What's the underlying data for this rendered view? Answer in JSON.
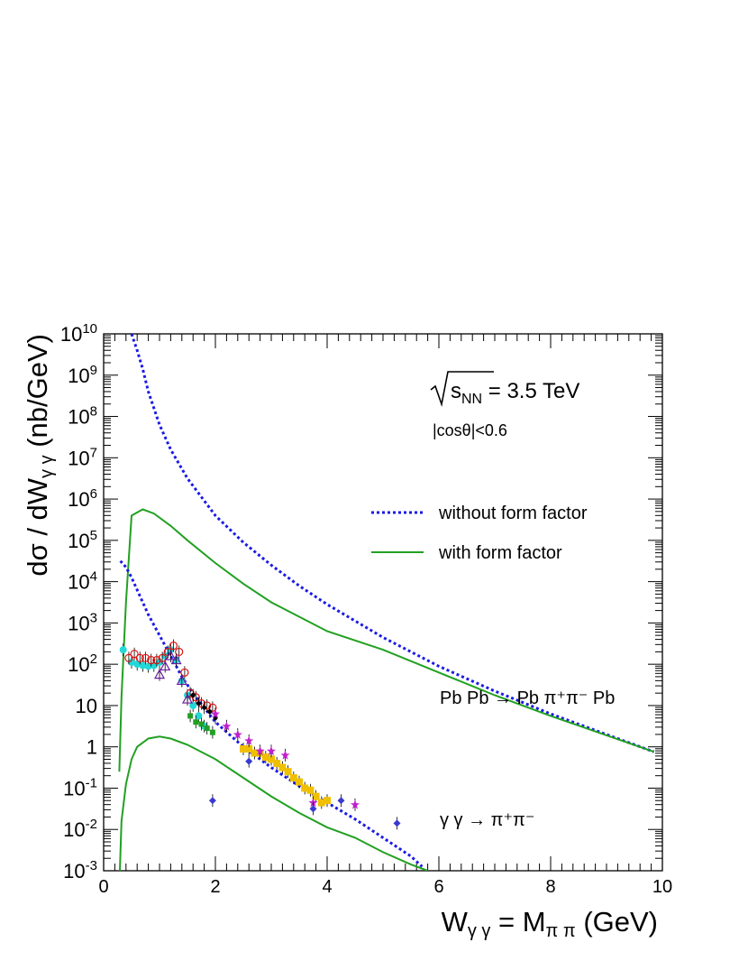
{
  "chart_data": {
    "type": "line",
    "xlabel": {
      "main": "W",
      "main_sub": "γ γ",
      "eq": " = M",
      "eq_sub": "π π",
      "unit": " (GeV)"
    },
    "ylabel": {
      "main": "dσ / dW",
      "sub": "γ γ",
      "unit": " (nb/GeV)"
    },
    "xlim": [
      0,
      10
    ],
    "ylim_log10": [
      -3,
      10
    ],
    "y_scale": "log",
    "x_ticks": [
      "0",
      "2",
      "4",
      "6",
      "8",
      "10"
    ],
    "y_ticks": [
      {
        "base": "10",
        "exp": "-3"
      },
      {
        "base": "10",
        "exp": "-2"
      },
      {
        "base": "10",
        "exp": "-1"
      },
      {
        "base": "1",
        "exp": ""
      },
      {
        "base": "10",
        "exp": ""
      },
      {
        "base": "10",
        "exp": "2"
      },
      {
        "base": "10",
        "exp": "3"
      },
      {
        "base": "10",
        "exp": "4"
      },
      {
        "base": "10",
        "exp": "5"
      },
      {
        "base": "10",
        "exp": "6"
      },
      {
        "base": "10",
        "exp": "7"
      },
      {
        "base": "10",
        "exp": "8"
      },
      {
        "base": "10",
        "exp": "9"
      },
      {
        "base": "10",
        "exp": "10"
      }
    ],
    "energy_label": {
      "prefix": "s",
      "sub": "NN",
      "value": " = 3.5 TeV"
    },
    "cut_label": "|cosθ|<0.6",
    "legend": [
      {
        "label": "without form factor",
        "color": "#1a1ae6",
        "style": "dotted"
      },
      {
        "label": "with form factor",
        "color": "#22a022",
        "style": "solid"
      }
    ],
    "annotations": [
      {
        "text": "Pb Pb → Pb π⁺π⁻ Pb"
      },
      {
        "text": "γ γ → π⁺π⁻"
      }
    ],
    "series": [
      {
        "curve": "PbPb-no-ff",
        "color": "#1a1ae6",
        "style": "dotted",
        "x": [
          0.5,
          0.6,
          0.7,
          0.8,
          1.0,
          1.2,
          1.5,
          2.0,
          2.5,
          3.0,
          3.5,
          4.0,
          5.0,
          6.0,
          7.0,
          8.0,
          9.0,
          9.85
        ],
        "log10y": [
          10.0,
          9.6,
          9.15,
          8.6,
          7.8,
          7.2,
          6.5,
          5.6,
          4.95,
          4.4,
          3.9,
          3.45,
          2.65,
          1.95,
          1.35,
          0.8,
          0.3,
          -0.12
        ]
      },
      {
        "curve": "PbPb-with-ff",
        "color": "#22a022",
        "style": "solid",
        "x": [
          0.28,
          0.32,
          0.4,
          0.5,
          0.7,
          0.9,
          1.2,
          1.5,
          2.0,
          2.5,
          3.0,
          3.5,
          4.0,
          5.0,
          6.0,
          7.0,
          8.0,
          9.0,
          9.85
        ],
        "log10y": [
          -0.6,
          1.2,
          3.5,
          5.6,
          5.75,
          5.65,
          5.35,
          5.0,
          4.45,
          3.95,
          3.5,
          3.15,
          2.8,
          2.35,
          1.8,
          1.25,
          0.75,
          0.28,
          -0.12
        ]
      },
      {
        "curve": "gg-no-ff",
        "color": "#1a1ae6",
        "style": "dotted",
        "x": [
          0.3,
          0.4,
          0.5,
          0.6,
          0.7,
          0.8,
          1.0,
          1.2,
          1.4,
          1.6,
          2.0,
          2.5,
          3.0,
          3.5,
          4.0,
          4.5,
          5.0,
          5.5,
          5.7
        ],
        "log10y": [
          4.5,
          4.35,
          4.1,
          3.8,
          3.5,
          3.2,
          2.7,
          2.2,
          1.7,
          1.3,
          0.6,
          0.0,
          -0.5,
          -0.95,
          -1.35,
          -1.75,
          -2.2,
          -2.65,
          -2.9
        ]
      },
      {
        "curve": "gg-with-ff",
        "color": "#22a022",
        "style": "solid",
        "x": [
          0.29,
          0.32,
          0.4,
          0.5,
          0.6,
          0.8,
          1.0,
          1.2,
          1.5,
          2.0,
          2.5,
          3.0,
          3.5,
          4.0,
          4.5,
          5.0,
          5.5,
          5.8
        ],
        "log10y": [
          -3.0,
          -1.8,
          -0.9,
          -0.3,
          0.0,
          0.2,
          0.25,
          0.2,
          0.05,
          -0.3,
          -0.75,
          -1.2,
          -1.6,
          -1.95,
          -2.2,
          -2.55,
          -2.85,
          -3.0
        ]
      }
    ],
    "data_points": [
      {
        "set": "cyan-circles",
        "color": "#22d8d8",
        "marker": "filled-circle",
        "points": [
          [
            0.35,
            2.35
          ],
          [
            0.5,
            2.05
          ],
          [
            0.6,
            2.0
          ],
          [
            0.7,
            1.97
          ],
          [
            0.8,
            1.95
          ],
          [
            0.9,
            1.97
          ],
          [
            1.0,
            2.05
          ],
          [
            1.1,
            2.2
          ],
          [
            1.2,
            2.35
          ],
          [
            1.3,
            2.1
          ],
          [
            1.4,
            1.6
          ],
          [
            1.5,
            1.25
          ],
          [
            1.6,
            1.0
          ],
          [
            1.7,
            0.75
          ],
          [
            1.8,
            0.5
          ]
        ]
      },
      {
        "set": "red-circles",
        "color": "#e01010",
        "marker": "open-circle",
        "points": [
          [
            0.45,
            2.15
          ],
          [
            0.55,
            2.25
          ],
          [
            0.65,
            2.15
          ],
          [
            0.75,
            2.15
          ],
          [
            0.85,
            2.1
          ],
          [
            0.95,
            2.1
          ],
          [
            1.05,
            2.15
          ],
          [
            1.15,
            2.3
          ],
          [
            1.25,
            2.45
          ],
          [
            1.35,
            2.3
          ],
          [
            1.45,
            1.8
          ],
          [
            1.55,
            1.3
          ],
          [
            1.65,
            1.2
          ],
          [
            1.75,
            1.05
          ],
          [
            1.85,
            1.0
          ],
          [
            1.95,
            0.95
          ]
        ]
      },
      {
        "set": "purple-triangles",
        "color": "#6a1aa0",
        "marker": "open-triangle",
        "points": [
          [
            1.0,
            1.75
          ],
          [
            1.1,
            1.95
          ],
          [
            1.2,
            2.2
          ],
          [
            1.3,
            2.1
          ],
          [
            1.4,
            1.6
          ],
          [
            1.5,
            1.15
          ]
        ]
      },
      {
        "set": "green-points",
        "color": "#22a022",
        "marker": "filled-square-small",
        "points": [
          [
            1.55,
            0.75
          ],
          [
            1.65,
            0.6
          ],
          [
            1.75,
            0.55
          ],
          [
            1.85,
            0.45
          ],
          [
            1.95,
            0.35
          ]
        ]
      },
      {
        "set": "black-points",
        "color": "#000000",
        "marker": "filled-circle-small",
        "points": [
          [
            1.6,
            1.25
          ],
          [
            1.7,
            1.05
          ],
          [
            1.8,
            0.95
          ],
          [
            1.9,
            0.85
          ],
          [
            2.0,
            0.7
          ]
        ]
      },
      {
        "set": "yellow-squares",
        "color": "#f0c000",
        "marker": "filled-square",
        "points": [
          [
            2.5,
            -0.05
          ],
          [
            2.6,
            -0.05
          ],
          [
            2.7,
            -0.15
          ],
          [
            2.8,
            -0.15
          ],
          [
            2.9,
            -0.25
          ],
          [
            3.0,
            -0.3
          ],
          [
            3.1,
            -0.4
          ],
          [
            3.2,
            -0.5
          ],
          [
            3.3,
            -0.6
          ],
          [
            3.4,
            -0.75
          ],
          [
            3.5,
            -0.85
          ],
          [
            3.6,
            -1.0
          ],
          [
            3.7,
            -1.05
          ],
          [
            3.8,
            -1.2
          ],
          [
            3.9,
            -1.35
          ],
          [
            4.0,
            -1.3
          ]
        ]
      },
      {
        "set": "magenta-stars",
        "color": "#c020d0",
        "marker": "filled-star",
        "points": [
          [
            2.0,
            0.8
          ],
          [
            2.2,
            0.5
          ],
          [
            2.4,
            0.3
          ],
          [
            2.6,
            0.15
          ],
          [
            2.8,
            -0.1
          ],
          [
            3.0,
            -0.1
          ],
          [
            3.25,
            -0.2
          ],
          [
            3.75,
            -1.35
          ],
          [
            4.5,
            -1.4
          ]
        ]
      },
      {
        "set": "blue-diamonds",
        "color": "#3a3ad0",
        "marker": "filled-diamond",
        "points": [
          [
            1.95,
            -1.3
          ],
          [
            2.6,
            -0.35
          ],
          [
            3.75,
            -1.5
          ],
          [
            4.25,
            -1.3
          ],
          [
            5.25,
            -1.85
          ]
        ]
      }
    ]
  }
}
